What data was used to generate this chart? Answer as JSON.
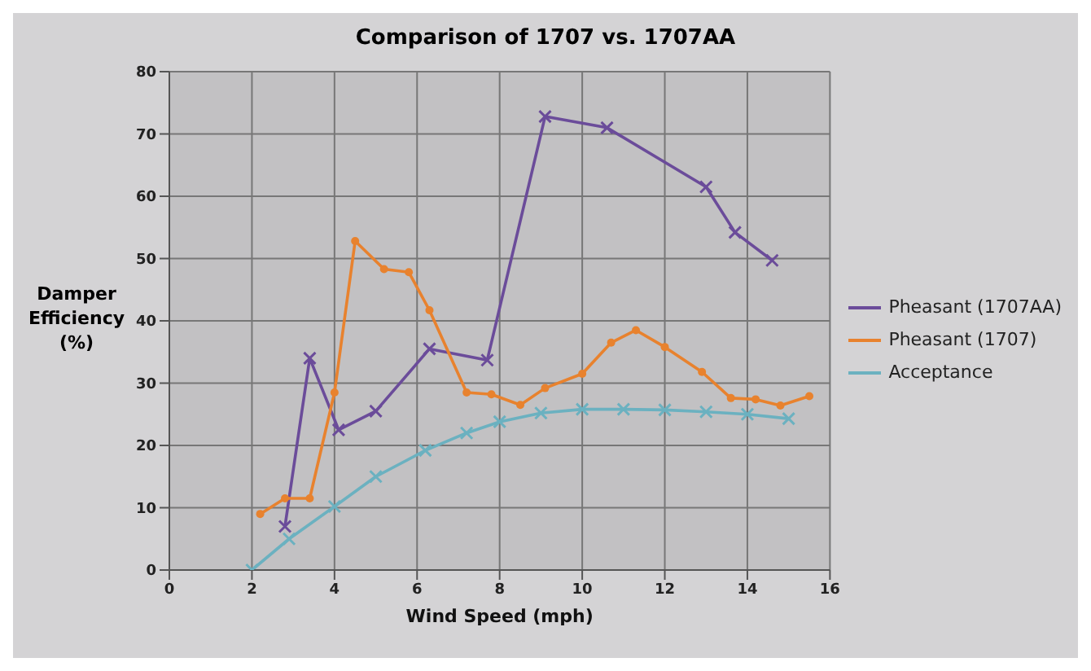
{
  "chart_data": {
    "type": "line",
    "title": "Comparison of 1707 vs. 1707AA",
    "xlabel": "Wind Speed (mph)",
    "ylabel": "Damper Efficiency (%)",
    "xlim": [
      0,
      16
    ],
    "xticks": [
      0,
      2,
      4,
      6,
      8,
      10,
      12,
      14,
      16
    ],
    "ylim": [
      0,
      80
    ],
    "yticks": [
      0,
      10,
      20,
      30,
      40,
      50,
      60,
      70,
      80
    ],
    "grid": true,
    "legend": "right",
    "series": [
      {
        "name": "Pheasant (1707AA)",
        "color": "#6b4c9a",
        "marker": "cross",
        "x": [
          2.8,
          3.4,
          4.1,
          5,
          6.3,
          7.7,
          9.1,
          10.6,
          13,
          13.7,
          14.6
        ],
        "values": [
          7,
          34,
          22.5,
          25.5,
          35.5,
          33.7,
          72.8,
          71,
          61.5,
          54.2,
          49.7
        ]
      },
      {
        "name": "Pheasant (1707)",
        "color": "#e8822e",
        "marker": "circle",
        "x": [
          2.2,
          2.8,
          3.4,
          4,
          4.5,
          5.2,
          5.8,
          6.3,
          7.2,
          7.8,
          8.5,
          9.1,
          10,
          10.7,
          11.3,
          12,
          12.9,
          13.6,
          14.2,
          14.8,
          15.5
        ],
        "values": [
          9,
          11.5,
          11.5,
          28.5,
          52.8,
          48.3,
          47.8,
          41.7,
          28.5,
          28.2,
          26.5,
          29.2,
          31.5,
          36.5,
          38.5,
          35.8,
          31.8,
          27.6,
          27.4,
          26.4,
          27.9
        ]
      },
      {
        "name": "Acceptance",
        "color": "#6bb1c0",
        "marker": "cross",
        "x": [
          2,
          2.9,
          4,
          5,
          6.2,
          7.2,
          8,
          9,
          10,
          11,
          12,
          13,
          14,
          15
        ],
        "values": [
          0,
          5,
          10.2,
          15,
          19.2,
          22,
          23.8,
          25.2,
          25.8,
          25.8,
          25.7,
          25.4,
          25,
          24.3
        ]
      }
    ]
  }
}
